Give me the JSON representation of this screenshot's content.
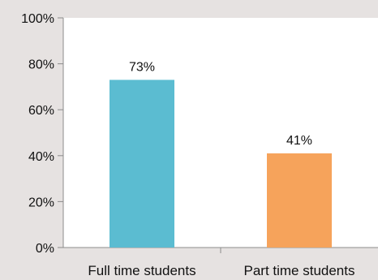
{
  "chart_data": {
    "type": "bar",
    "title": "",
    "xlabel": "",
    "ylabel": "",
    "categories": [
      "Full time students",
      "Part time students"
    ],
    "values": [
      73,
      41
    ],
    "data_labels": [
      "73%",
      "41%"
    ],
    "ylim": [
      0,
      100
    ],
    "y_ticks": [
      0,
      20,
      40,
      60,
      80,
      100
    ],
    "y_tick_labels": [
      "0%",
      "20%",
      "40%",
      "60%",
      "80%",
      "100%"
    ],
    "bar_colors": [
      "#5bbcd1",
      "#f6a35b"
    ],
    "plot_background": "#ffffff",
    "page_background": "#e6e2e1",
    "grid": false,
    "legend": "none"
  }
}
